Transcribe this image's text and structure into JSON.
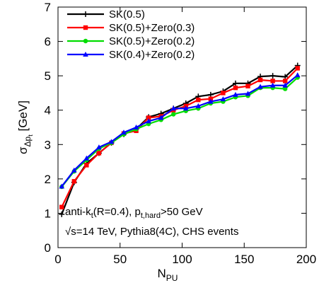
{
  "chart_data": {
    "type": "line",
    "title": "",
    "xlabel": "N",
    "xlabel_sub": "PU",
    "ylabel": "σ",
    "ylabel_sub": "Δp",
    "ylabel_subsub": "t",
    "ylabel_unit": " [GeV]",
    "xlim": [
      0,
      200
    ],
    "ylim": [
      0,
      7
    ],
    "xticks": [
      "0",
      "50",
      "100",
      "150",
      "200"
    ],
    "yticks": [
      "0",
      "1",
      "2",
      "3",
      "4",
      "5",
      "6",
      "7"
    ],
    "grid": false,
    "legend_position": "top-left",
    "annotations": {
      "line1": {
        "a": "anti-k",
        "a_sub": "t",
        "b": "(R=0.4), p",
        "b_sub": "t,hard",
        "c": ">50 GeV"
      },
      "line2": "√s=14 TeV, Pythia8(4C), CHS events"
    },
    "x": [
      3,
      13,
      23,
      33,
      43,
      53,
      63,
      73,
      83,
      93,
      103,
      113,
      123,
      133,
      143,
      153,
      163,
      173,
      183,
      193
    ],
    "series": [
      {
        "name": "SK(0.5)",
        "color": "#000000",
        "marker": "plus",
        "values": [
          0.97,
          1.9,
          2.45,
          2.75,
          3.05,
          3.3,
          3.45,
          3.8,
          3.9,
          4.05,
          4.2,
          4.4,
          4.45,
          4.55,
          4.78,
          4.78,
          4.98,
          5.0,
          4.97,
          5.3
        ]
      },
      {
        "name": "SK(0.5)+Zero(0.3)",
        "color": "#ff0000",
        "marker": "square",
        "values": [
          1.18,
          1.93,
          2.4,
          2.75,
          3.05,
          3.32,
          3.4,
          3.78,
          3.82,
          4.0,
          4.12,
          4.3,
          4.33,
          4.5,
          4.65,
          4.7,
          4.88,
          4.85,
          4.85,
          5.22
        ]
      },
      {
        "name": "SK(0.5)+Zero(0.2)",
        "color": "#00dd00",
        "marker": "circle",
        "values": [
          1.77,
          2.22,
          2.55,
          2.88,
          3.05,
          3.3,
          3.45,
          3.6,
          3.72,
          3.88,
          3.98,
          4.05,
          4.2,
          4.25,
          4.38,
          4.42,
          4.65,
          4.65,
          4.62,
          4.95
        ]
      },
      {
        "name": "SK(0.4)+Zero(0.2)",
        "color": "#0000ff",
        "marker": "triangle",
        "values": [
          1.78,
          2.25,
          2.6,
          2.92,
          3.08,
          3.35,
          3.5,
          3.68,
          3.78,
          4.05,
          4.05,
          4.12,
          4.25,
          4.32,
          4.45,
          4.48,
          4.68,
          4.72,
          4.72,
          5.02
        ]
      }
    ]
  }
}
